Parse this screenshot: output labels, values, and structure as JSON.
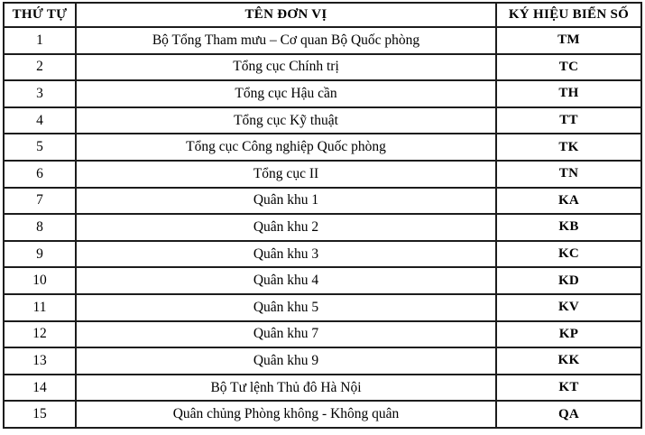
{
  "colors": {
    "background": "#ffffff",
    "border": "#1c1c1c",
    "text": "#000000"
  },
  "table": {
    "columns": [
      {
        "key": "stt",
        "label": "THỨ TỰ"
      },
      {
        "key": "ten",
        "label": "TÊN ĐƠN VỊ"
      },
      {
        "key": "kyhieu",
        "label": "KÝ HIỆU BIỂN SỐ"
      }
    ],
    "rows": [
      {
        "stt": "1",
        "ten": "Bộ Tổng Tham mưu – Cơ quan Bộ Quốc phòng",
        "kyhieu": "TM"
      },
      {
        "stt": "2",
        "ten": "Tổng cục Chính trị",
        "kyhieu": "TC"
      },
      {
        "stt": "3",
        "ten": "Tổng cục Hậu cần",
        "kyhieu": "TH"
      },
      {
        "stt": "4",
        "ten": "Tổng cục Kỹ thuật",
        "kyhieu": "TT"
      },
      {
        "stt": "5",
        "ten": "Tổng cục Công nghiệp Quốc phòng",
        "kyhieu": "TK"
      },
      {
        "stt": "6",
        "ten": "Tổng cục II",
        "kyhieu": "TN"
      },
      {
        "stt": "7",
        "ten": "Quân khu 1",
        "kyhieu": "KA"
      },
      {
        "stt": "8",
        "ten": "Quân khu 2",
        "kyhieu": "KB"
      },
      {
        "stt": "9",
        "ten": "Quân khu 3",
        "kyhieu": "KC"
      },
      {
        "stt": "10",
        "ten": "Quân khu 4",
        "kyhieu": "KD"
      },
      {
        "stt": "11",
        "ten": "Quân khu 5",
        "kyhieu": "KV"
      },
      {
        "stt": "12",
        "ten": "Quân khu 7",
        "kyhieu": "KP"
      },
      {
        "stt": "13",
        "ten": "Quân khu 9",
        "kyhieu": "KK"
      },
      {
        "stt": "14",
        "ten": "Bộ Tư lệnh Thủ đô Hà Nội",
        "kyhieu": "KT"
      },
      {
        "stt": "15",
        "ten": "Quân chủng Phòng không - Không quân",
        "kyhieu": "QA"
      }
    ]
  }
}
